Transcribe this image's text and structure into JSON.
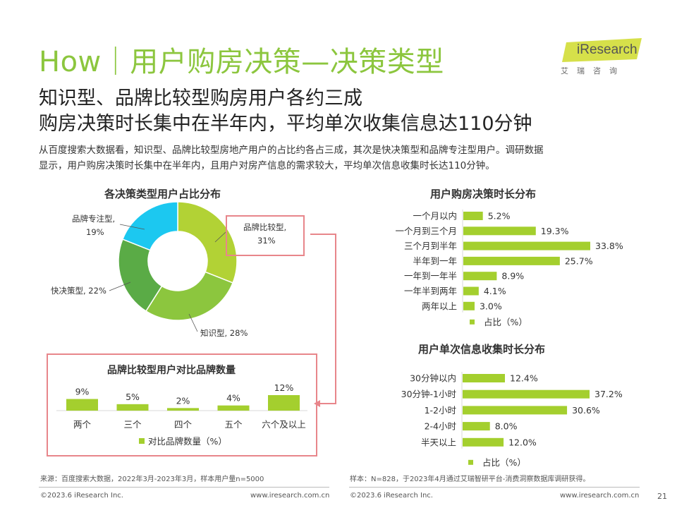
{
  "title": "How｜用户购房决策—决策类型",
  "brand": {
    "name": "iResearch",
    "cn": "艾瑞咨询"
  },
  "subtitle": [
    "知识型、品牌比较型购房用户各约三成",
    "购房决策时长集中在半年内，平均单次收集信息达110分钟"
  ],
  "description": [
    "从百度搜索大数据看，知识型、品牌比较型房地产用户的占比约各占三成，其次是快决策型和品牌专注型用户。调研数据",
    "显示，用户购房决策时长集中在半年内，且用户对房产信息的需求较大，平均单次信息收集时长达110分钟。"
  ],
  "colors": {
    "accent": "#8cc63e",
    "bar": "#a4cf2e",
    "highlight_box": "#e8868b"
  },
  "chart_data": [
    {
      "type": "pie",
      "title": "各决策类型用户占比分布",
      "slices": [
        {
          "name": "品牌比较型",
          "value": 31,
          "label_value": "31%",
          "color": "#b2d235"
        },
        {
          "name": "知识型",
          "value": 28,
          "label_value": "28%",
          "color": "#8cc63e"
        },
        {
          "name": "快决策型",
          "value": 22,
          "label_value": "22%",
          "color": "#5aab46"
        },
        {
          "name": "品牌专注型",
          "value": 19,
          "label_value": "19%",
          "color": "#1cc8f0"
        }
      ]
    },
    {
      "type": "bar",
      "title": "品牌比较型用户对比品牌数量",
      "categories": [
        "两个",
        "三个",
        "四个",
        "五个",
        "六个及以上"
      ],
      "values": [
        9,
        5,
        2,
        4,
        12
      ],
      "labels": [
        "9%",
        "5%",
        "2%",
        "4%",
        "12%"
      ],
      "legend": "对比品牌数量（%）"
    },
    {
      "type": "bar",
      "orientation": "horizontal",
      "title": "用户购房决策时长分布",
      "categories": [
        "一个月以内",
        "一个月到三个月",
        "三个月到半年",
        "半年到一年",
        "一年到一年半",
        "一年半到两年",
        "两年以上"
      ],
      "values": [
        5.2,
        19.3,
        33.8,
        25.7,
        8.9,
        4.1,
        3.0
      ],
      "labels": [
        "5.2%",
        "19.3%",
        "33.8%",
        "25.7%",
        "8.9%",
        "4.1%",
        "3.0%"
      ],
      "legend": "占比（%）"
    },
    {
      "type": "bar",
      "orientation": "horizontal",
      "title": "用户单次信息收集时长分布",
      "categories": [
        "30分钟以内",
        "30分钟-1小时",
        "1-2小时",
        "2-4小时",
        "半天以上"
      ],
      "values": [
        12.4,
        37.2,
        30.6,
        8.0,
        12.0
      ],
      "labels": [
        "12.4%",
        "37.2%",
        "30.6%",
        "8.0%",
        "12.0%"
      ],
      "legend": "占比（%）"
    }
  ],
  "source_left": "来源：百度搜索大数据，2022年3月-2023年3月，样本用户量n=5000",
  "source_right": "样本：N=828，于2023年4月通过艾瑞智研平台-消费洞察数据库调研获得。",
  "footer": {
    "copyright": "©2023.6 iResearch Inc.",
    "url": "www.iresearch.com.cn",
    "page": "21"
  }
}
